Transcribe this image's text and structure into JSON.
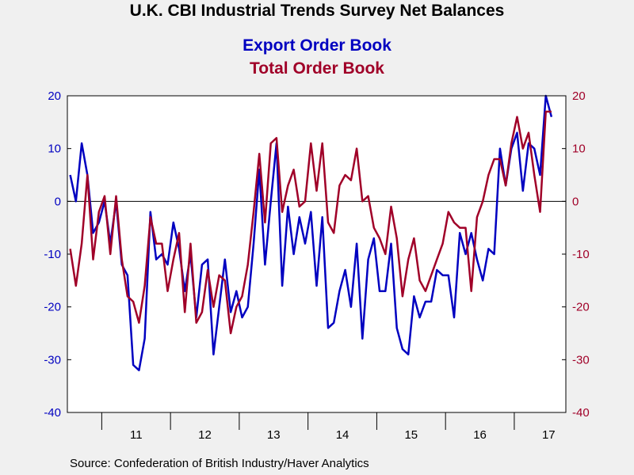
{
  "chart_data": {
    "type": "line",
    "title": "U.K. CBI Industrial Trends Survey Net Balances",
    "subtitles": [
      "Export Order Book",
      "Total Order Book"
    ],
    "source": "Source:  Confederation of British Industry/Haver Analytics",
    "x_start": "2010-07",
    "x_end": "2017-09",
    "year_labels": [
      "11",
      "12",
      "13",
      "14",
      "15",
      "16",
      "17"
    ],
    "ylim": [
      -40,
      20
    ],
    "y_left_ticks": [
      "20",
      "10",
      "0",
      "-10",
      "-20",
      "-30",
      "-40"
    ],
    "y_right_ticks": [
      "20",
      "10",
      "0",
      "-10",
      "-20",
      "-30",
      "-40"
    ],
    "left_axis_color": "#0000c0",
    "right_axis_color": "#a00028",
    "zero_line": true,
    "series": [
      {
        "name": "Export Order Book",
        "color": "#0000c0",
        "axis": "left",
        "values": [
          5,
          0,
          11,
          5,
          -6,
          -4,
          0,
          -8,
          0,
          -12,
          -14,
          -31,
          -32,
          -26,
          -2,
          -11,
          -10,
          -12,
          -4,
          -9,
          -17,
          -10,
          -22,
          -12,
          -11,
          -29,
          -20,
          -11,
          -21,
          -17,
          -22,
          -20,
          -8,
          6,
          -12,
          0,
          11,
          -16,
          -1,
          -10,
          -3,
          -8,
          -2,
          -16,
          -3,
          -24,
          -23,
          -17,
          -13,
          -20,
          -8,
          -26,
          -11,
          -7,
          -17,
          -17,
          -8,
          -24,
          -28,
          -29,
          -18,
          -22,
          -19,
          -19,
          -13,
          -14,
          -14,
          -22,
          -6,
          -10,
          -6,
          -11,
          -15,
          -9,
          -10,
          10,
          3,
          10,
          13,
          2,
          11,
          10,
          5,
          20,
          16
        ]
      },
      {
        "name": "Total Order Book",
        "color": "#a00028",
        "axis": "right",
        "values": [
          -9,
          -16,
          -8,
          5,
          -11,
          -2,
          1,
          -10,
          1,
          -11,
          -18,
          -19,
          -23,
          -16,
          -3,
          -8,
          -8,
          -17,
          -11,
          -6,
          -21,
          -8,
          -23,
          -21,
          -13,
          -20,
          -14,
          -15,
          -25,
          -20,
          -18,
          -12,
          -2,
          9,
          -4,
          11,
          12,
          -2,
          3,
          6,
          -1,
          0,
          11,
          2,
          11,
          -4,
          -6,
          3,
          5,
          4,
          10,
          0,
          1,
          -5,
          -7,
          -10,
          -1,
          -7,
          -18,
          -11,
          -7,
          -15,
          -17,
          -14,
          -11,
          -8,
          -2,
          -4,
          -5,
          -5,
          -17,
          -3,
          0,
          5,
          8,
          8,
          3,
          11,
          16,
          10,
          13,
          5,
          -2,
          17,
          17
        ]
      }
    ]
  }
}
